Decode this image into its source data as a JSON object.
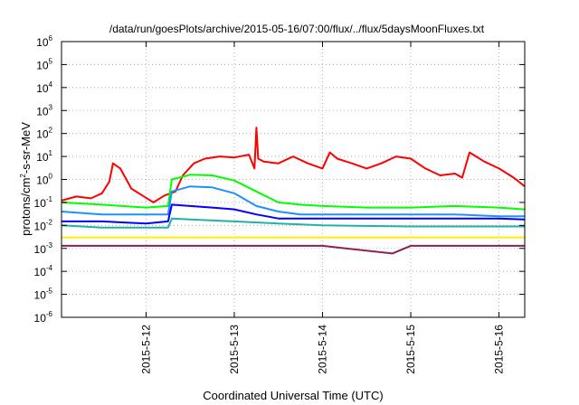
{
  "chart_data": {
    "type": "line",
    "title": "/data/run/goesPlots/archive/2015-05-16/07:00/flux/../flux/5daysMoonFluxes.txt",
    "xlabel": "Coordinated Universal Time (UTC)",
    "ylabel": {
      "base": "protons/cm",
      "sup": "2",
      "rest": "-s-sr-MeV"
    },
    "y_scale": "log",
    "ylim": [
      1e-06,
      1000000.0
    ],
    "y_ticks": [
      {
        "value": 1e-06,
        "base": "10",
        "exp": "-6"
      },
      {
        "value": 1e-05,
        "base": "10",
        "exp": "-5"
      },
      {
        "value": 0.0001,
        "base": "10",
        "exp": "-4"
      },
      {
        "value": 0.001,
        "base": "10",
        "exp": "-3"
      },
      {
        "value": 0.01,
        "base": "10",
        "exp": "-2"
      },
      {
        "value": 0.1,
        "base": "10",
        "exp": "-1"
      },
      {
        "value": 1,
        "base": "10",
        "exp": "0"
      },
      {
        "value": 10,
        "base": "10",
        "exp": "1"
      },
      {
        "value": 100,
        "base": "10",
        "exp": "2"
      },
      {
        "value": 1000,
        "base": "10",
        "exp": "3"
      },
      {
        "value": 10000,
        "base": "10",
        "exp": "4"
      },
      {
        "value": 100000,
        "base": "10",
        "exp": "5"
      },
      {
        "value": 1000000,
        "base": "10",
        "exp": "6"
      }
    ],
    "x_range": [
      "2015-05-11 01:00",
      "2015-05-16 07:00"
    ],
    "x_ticks": [
      "2015-5-12",
      "2015-5-13",
      "2015-5-14",
      "2015-5-15",
      "2015-5-16"
    ],
    "grid": true,
    "legend": "none",
    "series": [
      {
        "color": "#ff0000",
        "x": [
          "2015-05-11 01:00",
          "2015-05-11 05:00",
          "2015-05-11 09:00",
          "2015-05-11 12:00",
          "2015-05-11 14:00",
          "2015-05-11 15:00",
          "2015-05-11 17:00",
          "2015-05-11 20:00",
          "2015-05-11 23:00",
          "2015-05-12 02:00",
          "2015-05-12 05:00",
          "2015-05-12 08:00",
          "2015-05-12 10:00",
          "2015-05-12 13:00",
          "2015-05-12 16:00",
          "2015-05-12 20:00",
          "2015-05-13 00:00",
          "2015-05-13 04:00",
          "2015-05-13 05:30",
          "2015-05-13 06:00",
          "2015-05-13 06:30",
          "2015-05-13 08:00",
          "2015-05-13 12:00",
          "2015-05-13 16:00",
          "2015-05-13 20:00",
          "2015-05-14 00:00",
          "2015-05-14 02:00",
          "2015-05-14 04:00",
          "2015-05-14 08:00",
          "2015-05-14 12:00",
          "2015-05-14 16:00",
          "2015-05-14 20:00",
          "2015-05-15 00:00",
          "2015-05-15 04:00",
          "2015-05-15 08:00",
          "2015-05-15 12:00",
          "2015-05-15 14:00",
          "2015-05-15 16:00",
          "2015-05-15 20:00",
          "2015-05-16 00:00",
          "2015-05-16 04:00",
          "2015-05-16 07:00"
        ],
        "y": [
          0.12,
          0.18,
          0.15,
          0.25,
          0.8,
          5,
          3,
          0.4,
          0.2,
          0.1,
          0.2,
          0.3,
          1.5,
          5,
          8,
          10,
          9,
          12,
          3,
          180,
          8,
          6,
          5,
          10,
          5,
          3,
          15,
          8,
          5,
          3,
          5,
          10,
          8,
          3,
          1.5,
          1.8,
          1.2,
          15,
          6,
          3,
          1.2,
          0.5
        ]
      },
      {
        "color": "#00ff00",
        "x": [
          "2015-05-11 01:00",
          "2015-05-11 12:00",
          "2015-05-12 00:00",
          "2015-05-12 06:00",
          "2015-05-12 07:00",
          "2015-05-12 12:00",
          "2015-05-12 18:00",
          "2015-05-13 00:00",
          "2015-05-13 06:00",
          "2015-05-13 12:00",
          "2015-05-13 18:00",
          "2015-05-14 00:00",
          "2015-05-14 12:00",
          "2015-05-15 00:00",
          "2015-05-15 12:00",
          "2015-05-16 00:00",
          "2015-05-16 07:00"
        ],
        "y": [
          0.1,
          0.08,
          0.06,
          0.07,
          1.0,
          1.6,
          1.5,
          0.9,
          0.3,
          0.1,
          0.08,
          0.07,
          0.06,
          0.06,
          0.07,
          0.06,
          0.05
        ]
      },
      {
        "color": "#1e90ff",
        "x": [
          "2015-05-11 01:00",
          "2015-05-11 12:00",
          "2015-05-12 00:00",
          "2015-05-12 06:00",
          "2015-05-12 07:00",
          "2015-05-12 12:00",
          "2015-05-12 18:00",
          "2015-05-13 00:00",
          "2015-05-13 06:00",
          "2015-05-13 12:00",
          "2015-05-13 18:00",
          "2015-05-14 00:00",
          "2015-05-14 12:00",
          "2015-05-15 00:00",
          "2015-05-15 12:00",
          "2015-05-16 00:00",
          "2015-05-16 07:00"
        ],
        "y": [
          0.04,
          0.03,
          0.03,
          0.03,
          0.3,
          0.5,
          0.45,
          0.25,
          0.07,
          0.04,
          0.03,
          0.03,
          0.03,
          0.03,
          0.03,
          0.025,
          0.025
        ]
      },
      {
        "color": "#0000ff",
        "x": [
          "2015-05-11 01:00",
          "2015-05-11 12:00",
          "2015-05-12 00:00",
          "2015-05-12 06:00",
          "2015-05-12 07:00",
          "2015-05-12 12:00",
          "2015-05-12 18:00",
          "2015-05-13 00:00",
          "2015-05-13 06:00",
          "2015-05-13 12:00",
          "2015-05-13 18:00",
          "2015-05-14 00:00",
          "2015-05-14 12:00",
          "2015-05-15 00:00",
          "2015-05-15 12:00",
          "2015-05-16 00:00",
          "2015-05-16 07:00"
        ],
        "y": [
          0.015,
          0.015,
          0.012,
          0.015,
          0.08,
          0.07,
          0.06,
          0.05,
          0.03,
          0.02,
          0.02,
          0.02,
          0.02,
          0.02,
          0.02,
          0.02,
          0.018
        ]
      },
      {
        "color": "#20b2aa",
        "x": [
          "2015-05-11 01:00",
          "2015-05-11 12:00",
          "2015-05-12 00:00",
          "2015-05-12 06:00",
          "2015-05-12 07:00",
          "2015-05-12 12:00",
          "2015-05-13 00:00",
          "2015-05-13 12:00",
          "2015-05-14 00:00",
          "2015-05-15 00:00",
          "2015-05-16 00:00",
          "2015-05-16 07:00"
        ],
        "y": [
          0.01,
          0.008,
          0.008,
          0.008,
          0.02,
          0.018,
          0.015,
          0.012,
          0.01,
          0.009,
          0.009,
          0.009
        ]
      },
      {
        "color": "#ffee00",
        "x": [
          "2015-05-11 01:00",
          "2015-05-12 00:00",
          "2015-05-13 00:00",
          "2015-05-14 00:00",
          "2015-05-15 00:00",
          "2015-05-16 00:00",
          "2015-05-16 07:00"
        ],
        "y": [
          0.003,
          0.003,
          0.003,
          0.003,
          0.003,
          0.003,
          0.003
        ]
      },
      {
        "color": "#8b2252",
        "x": [
          "2015-05-11 01:00",
          "2015-05-12 00:00",
          "2015-05-13 00:00",
          "2015-05-14 00:00",
          "2015-05-14 19:00",
          "2015-05-15 00:00",
          "2015-05-16 00:00",
          "2015-05-16 07:00"
        ],
        "y": [
          0.0013,
          0.0013,
          0.0013,
          0.0013,
          0.0006,
          0.0013,
          0.0013,
          0.0013
        ]
      }
    ]
  }
}
